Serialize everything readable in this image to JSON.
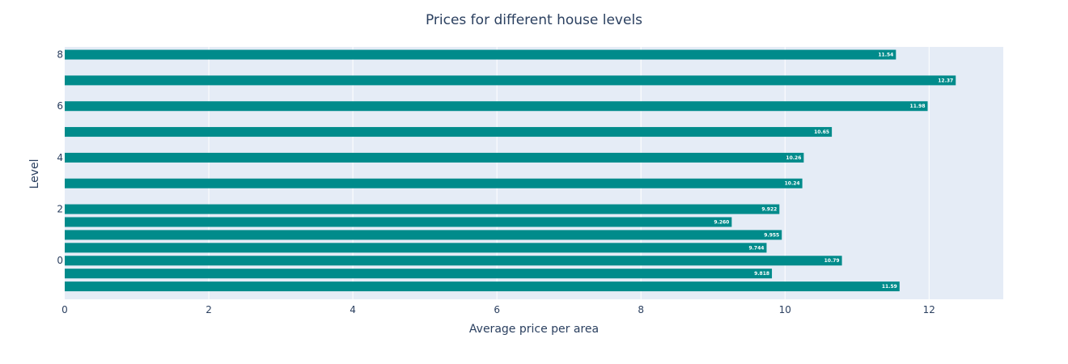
{
  "chart_data": {
    "type": "bar",
    "orientation": "horizontal",
    "title": "Prices for different house levels",
    "xlabel": "Average price per area",
    "ylabel": "Level",
    "xlim": [
      0,
      13.03
    ],
    "ylim": [
      -1.5,
      8.3
    ],
    "x_ticks": [
      0,
      2,
      4,
      6,
      8,
      10,
      12
    ],
    "y_ticks": [
      0,
      2,
      4,
      6,
      8
    ],
    "grid": true,
    "legend": "none",
    "bar_color": "#008b8b",
    "plot_bg": "#e5ecf6",
    "bars": [
      {
        "level": -1,
        "value": 11.59,
        "label": "11.59"
      },
      {
        "level": -0.5,
        "value": 9.818,
        "label": "9.818"
      },
      {
        "level": 0,
        "value": 10.79,
        "label": "10.79"
      },
      {
        "level": 0.5,
        "value": 9.744,
        "label": "9.744"
      },
      {
        "level": 1,
        "value": 9.955,
        "label": "9.955"
      },
      {
        "level": 1.5,
        "value": 9.26,
        "label": "9.260"
      },
      {
        "level": 2,
        "value": 9.922,
        "label": "9.922"
      },
      {
        "level": 3,
        "value": 10.24,
        "label": "10.24"
      },
      {
        "level": 4,
        "value": 10.26,
        "label": "10.26"
      },
      {
        "level": 5,
        "value": 10.65,
        "label": "10.65"
      },
      {
        "level": 6,
        "value": 11.98,
        "label": "11.98"
      },
      {
        "level": 7,
        "value": 12.37,
        "label": "12.37"
      },
      {
        "level": 8,
        "value": 11.54,
        "label": "11.54"
      }
    ]
  }
}
